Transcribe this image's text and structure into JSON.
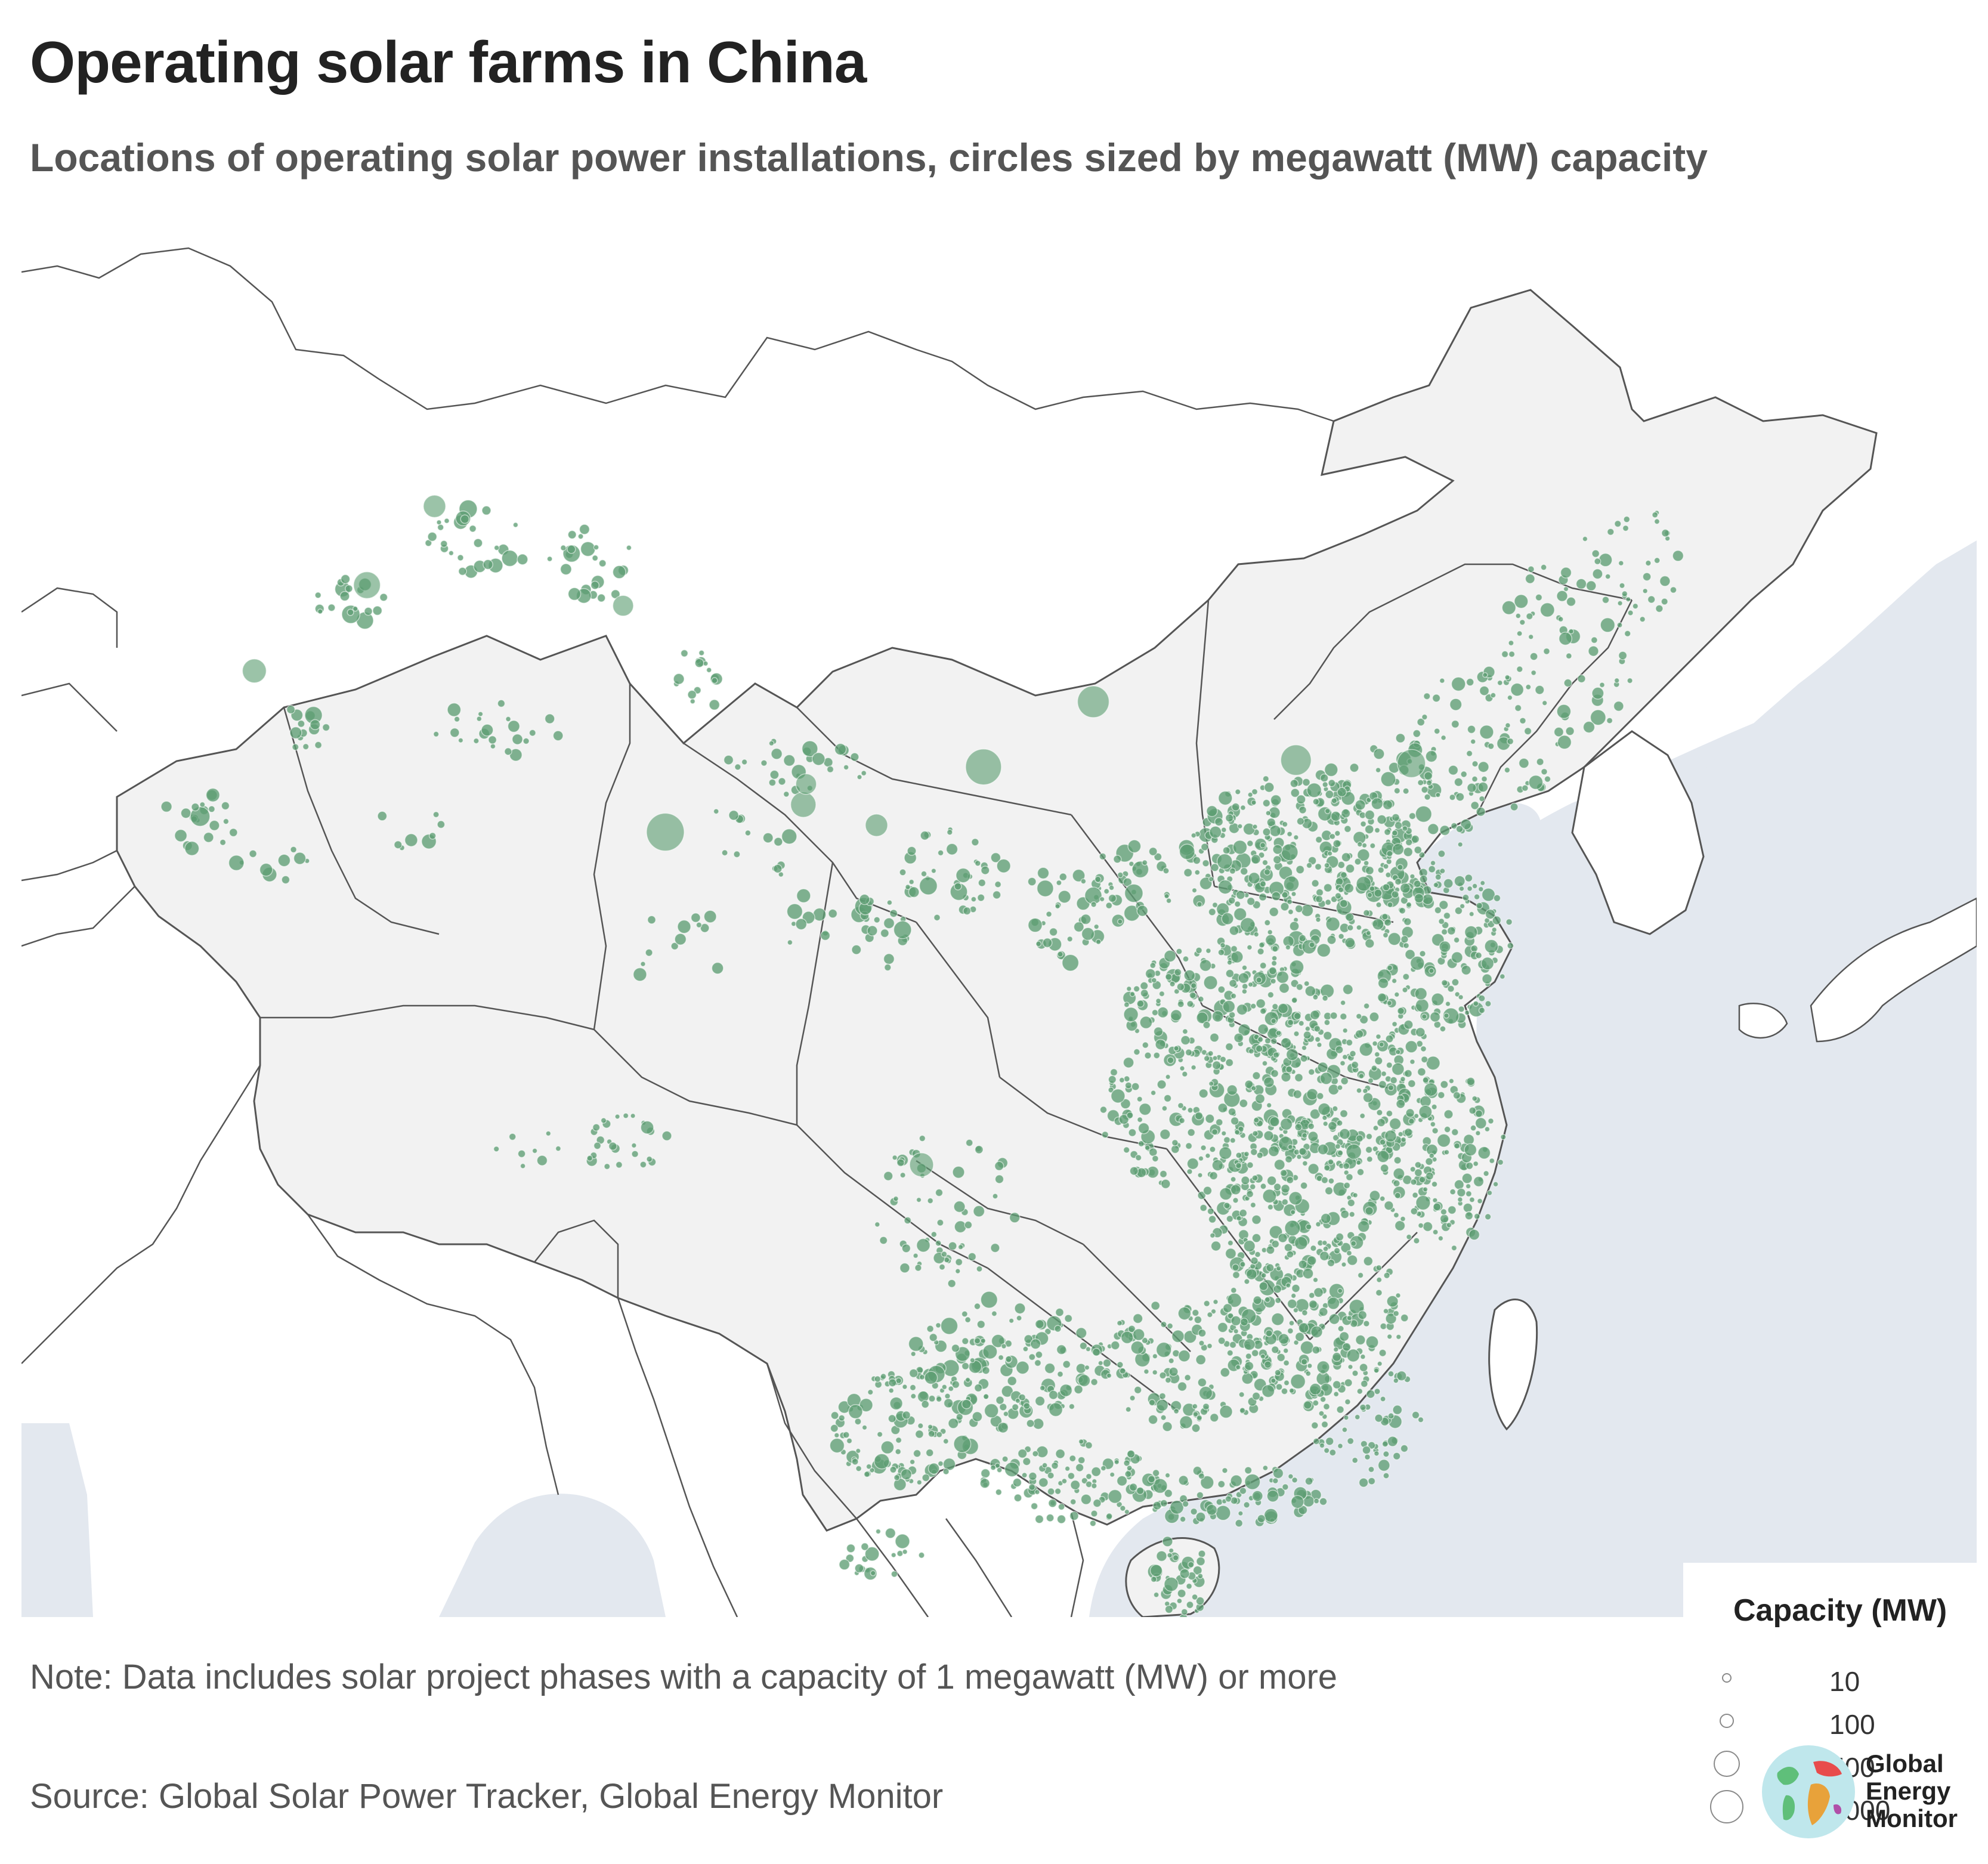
{
  "title": "Operating solar farms in China",
  "subtitle": "Locations of operating solar power installations, circles sized by megawatt (MW) capacity",
  "note": "Note: Data includes solar project phases with a capacity of 1 megawatt (MW) or more",
  "source": "Source: Global Solar Power Tracker, Global Energy Monitor",
  "colors": {
    "marker": "#5e9e73",
    "land": "#f2f2f2",
    "sea": "#e3e8ef",
    "border": "#555555"
  },
  "legend": {
    "title": "Capacity (MW)",
    "items": [
      {
        "label": "10",
        "value": 10
      },
      {
        "label": "100",
        "value": 100
      },
      {
        "label": "500",
        "value": 500
      },
      {
        "label": "1000",
        "value": 1000
      }
    ]
  },
  "logo": {
    "lines": [
      "Global",
      "Energy",
      "Monitor"
    ]
  },
  "map_data": {
    "type": "bubble-map",
    "region": "China",
    "marker_size_field": "capacity_mw",
    "large_sites_approx": [
      {
        "lon": 95.0,
        "lat": 36.3,
        "capacity_mw": 1000
      },
      {
        "lon": 106.3,
        "lat": 38.2,
        "capacity_mw": 900
      },
      {
        "lon": 110.2,
        "lat": 40.1,
        "capacity_mw": 700
      },
      {
        "lon": 117.4,
        "lat": 38.4,
        "capacity_mw": 650
      },
      {
        "lon": 121.5,
        "lat": 38.3,
        "capacity_mw": 550
      },
      {
        "lon": 84.4,
        "lat": 43.5,
        "capacity_mw": 500
      },
      {
        "lon": 99.9,
        "lat": 37.1,
        "capacity_mw": 450
      },
      {
        "lon": 104.1,
        "lat": 26.6,
        "capacity_mw": 400
      },
      {
        "lon": 80.4,
        "lat": 41.0,
        "capacity_mw": 400
      },
      {
        "lon": 86.8,
        "lat": 45.8,
        "capacity_mw": 350
      },
      {
        "lon": 102.5,
        "lat": 36.5,
        "capacity_mw": 350
      },
      {
        "lon": 93.5,
        "lat": 42.9,
        "capacity_mw": 300
      },
      {
        "lon": 100.0,
        "lat": 37.7,
        "capacity_mw": 300
      }
    ],
    "point_density_note": "several thousand smaller sites concentrated in eastern and southern provinces"
  }
}
